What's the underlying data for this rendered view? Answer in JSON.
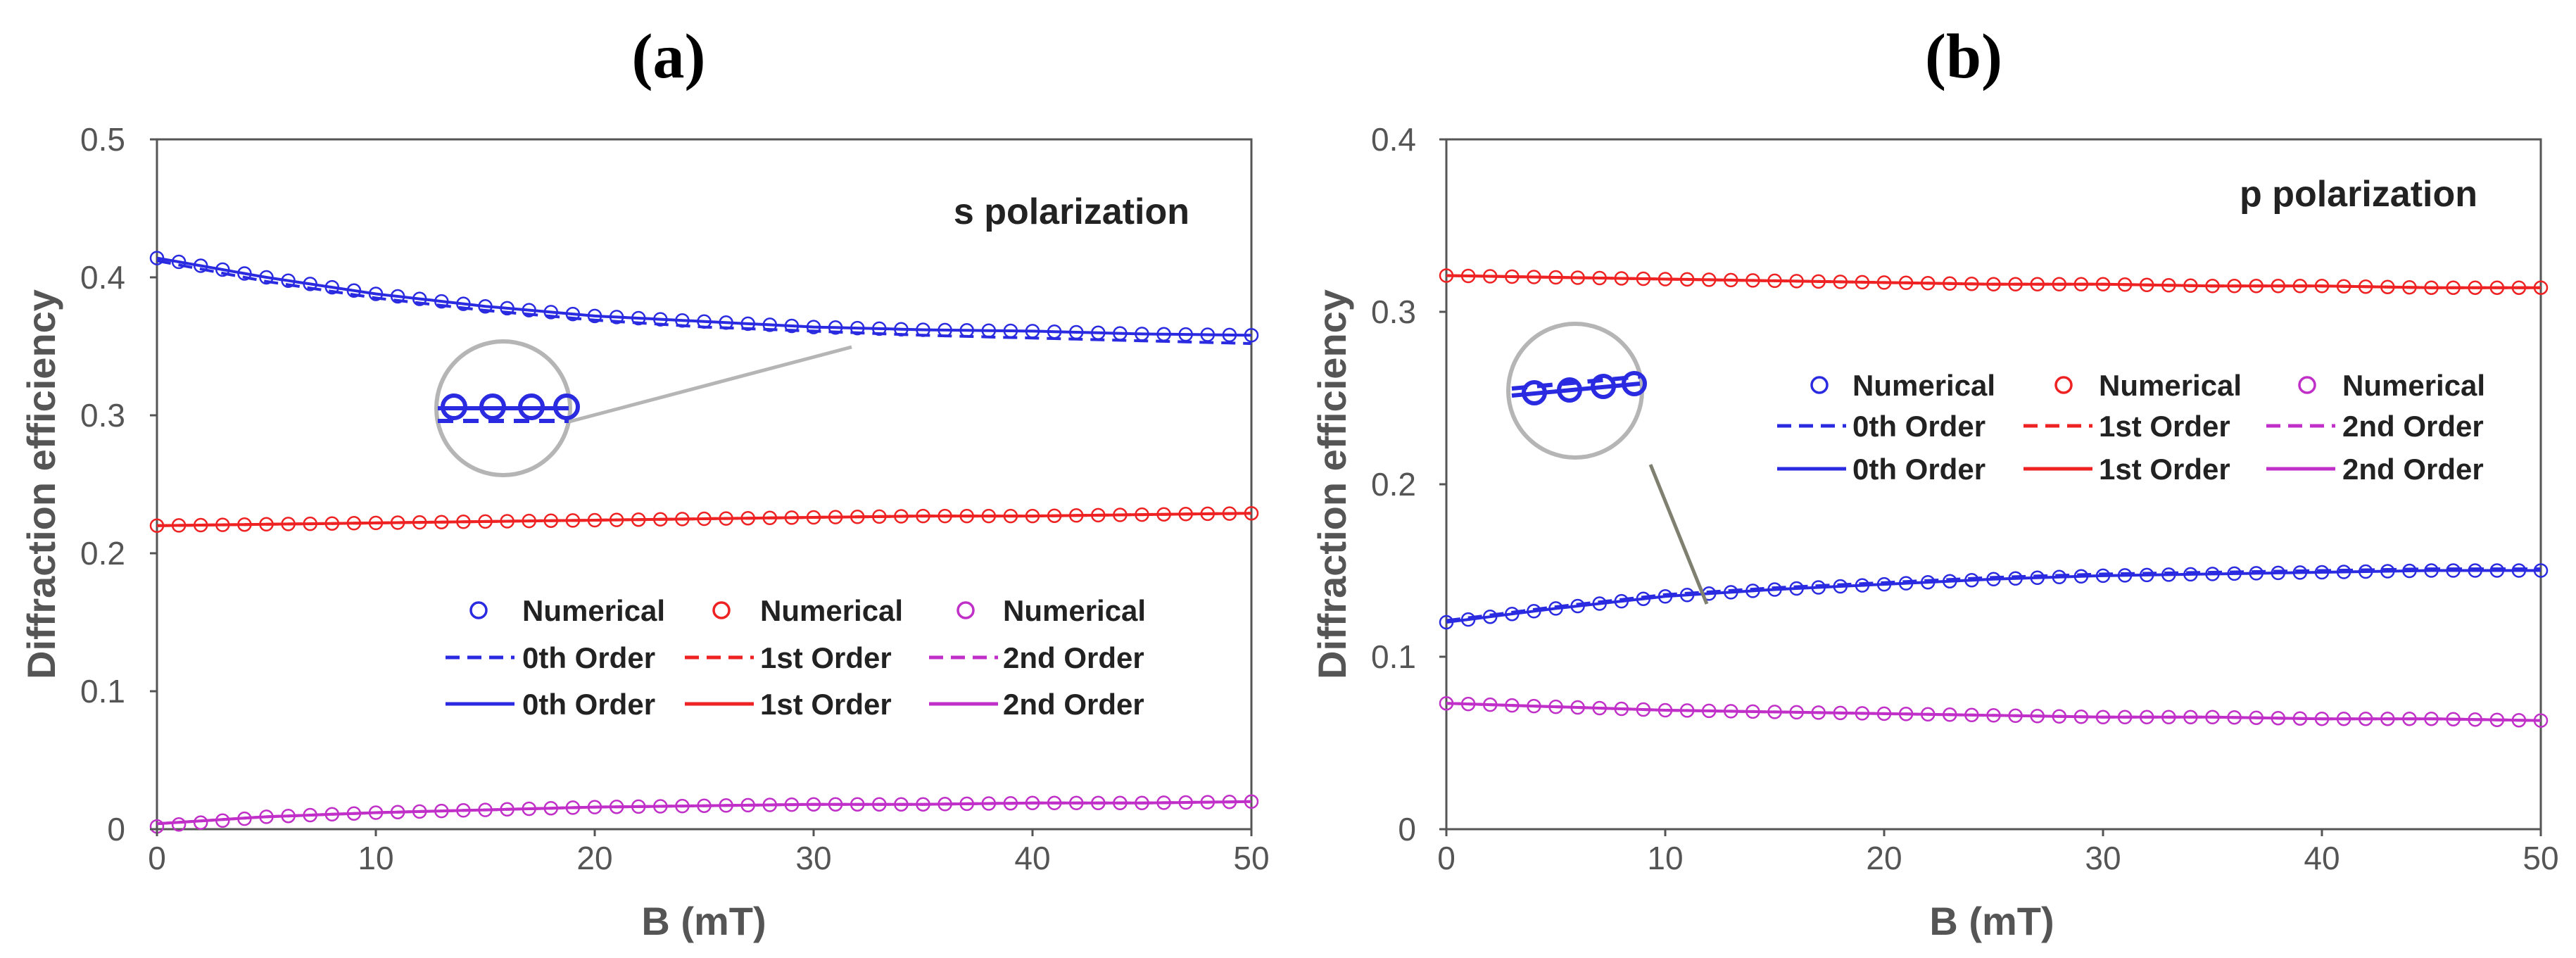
{
  "figure": {
    "panels": [
      {
        "label": "(a)",
        "annotation": "s polarization",
        "xlabel": "B (mT)",
        "ylabel": "Diffraction efficiency",
        "xlim": [
          0,
          50
        ],
        "ylim": [
          0,
          0.5
        ],
        "xticks": [
          "0",
          "10",
          "20",
          "30",
          "40",
          "50"
        ],
        "yticks": [
          "0",
          "0.1",
          "0.2",
          "0.3",
          "0.4",
          "0.5"
        ]
      },
      {
        "label": "(b)",
        "annotation": "p polarization",
        "xlabel": "B (mT)",
        "ylabel": "Diffraction efficiency",
        "xlim": [
          0,
          50
        ],
        "ylim": [
          0,
          0.4
        ],
        "xticks": [
          "0",
          "10",
          "20",
          "30",
          "40",
          "50"
        ],
        "yticks": [
          "0",
          "0.1",
          "0.2",
          "0.3",
          "0.4"
        ]
      }
    ],
    "legend": {
      "row1": [
        "Numerical",
        "Numerical",
        "Numerical"
      ],
      "row2": [
        "0th Order",
        "1st Order",
        "2nd Order"
      ],
      "row3": [
        "0th Order",
        "1st Order",
        "2nd Order"
      ]
    },
    "colors": {
      "order0": "#2a2ae0",
      "order1": "#ee2222",
      "order2": "#c030c8",
      "axis": "#555555",
      "inset": "#b5b5b5"
    }
  },
  "chart_data": [
    {
      "type": "line",
      "title": "(a) s polarization",
      "xlabel": "B (mT)",
      "ylabel": "Diffraction efficiency",
      "xlim": [
        0,
        50
      ],
      "ylim": [
        0,
        0.5
      ],
      "grid": false,
      "legend_position": "lower-center",
      "x": [
        0,
        5,
        10,
        15,
        20,
        25,
        30,
        35,
        40,
        45,
        50
      ],
      "series": [
        {
          "name": "0th Order (Numerical)",
          "style": "markers",
          "color": "#2a2ae0",
          "values": [
            0.414,
            0.4,
            0.388,
            0.379,
            0.372,
            0.368,
            0.364,
            0.362,
            0.361,
            0.359,
            0.358
          ]
        },
        {
          "name": "0th Order (dashed)",
          "style": "dashed",
          "color": "#2a2ae0",
          "values": [
            0.412,
            0.397,
            0.385,
            0.376,
            0.369,
            0.364,
            0.361,
            0.358,
            0.356,
            0.354,
            0.352
          ]
        },
        {
          "name": "0th Order (solid)",
          "style": "solid",
          "color": "#2a2ae0",
          "values": [
            0.414,
            0.4,
            0.388,
            0.379,
            0.372,
            0.368,
            0.364,
            0.362,
            0.361,
            0.359,
            0.358
          ]
        },
        {
          "name": "1st Order (Numerical)",
          "style": "markers",
          "color": "#ee2222",
          "values": [
            0.22,
            0.221,
            0.222,
            0.223,
            0.224,
            0.225,
            0.226,
            0.227,
            0.227,
            0.228,
            0.229
          ]
        },
        {
          "name": "1st Order (dashed)",
          "style": "dashed",
          "color": "#ee2222",
          "values": [
            0.22,
            0.221,
            0.222,
            0.223,
            0.224,
            0.225,
            0.226,
            0.227,
            0.227,
            0.228,
            0.229
          ]
        },
        {
          "name": "1st Order (solid)",
          "style": "solid",
          "color": "#ee2222",
          "values": [
            0.22,
            0.221,
            0.222,
            0.223,
            0.224,
            0.225,
            0.226,
            0.227,
            0.227,
            0.228,
            0.229
          ]
        },
        {
          "name": "2nd Order (Numerical)",
          "style": "markers",
          "color": "#c030c8",
          "values": [
            0.002,
            0.009,
            0.012,
            0.014,
            0.016,
            0.017,
            0.018,
            0.018,
            0.019,
            0.019,
            0.02
          ]
        },
        {
          "name": "2nd Order (dashed)",
          "style": "dashed",
          "color": "#c030c8",
          "values": [
            0.004,
            0.009,
            0.012,
            0.014,
            0.016,
            0.017,
            0.018,
            0.018,
            0.019,
            0.019,
            0.02
          ]
        },
        {
          "name": "2nd Order (solid)",
          "style": "solid",
          "color": "#c030c8",
          "values": [
            0.004,
            0.009,
            0.012,
            0.014,
            0.016,
            0.017,
            0.018,
            0.018,
            0.019,
            0.019,
            0.02
          ]
        }
      ]
    },
    {
      "type": "line",
      "title": "(b) p polarization",
      "xlabel": "B (mT)",
      "ylabel": "Diffraction efficiency",
      "xlim": [
        0,
        50
      ],
      "ylim": [
        0,
        0.4
      ],
      "grid": false,
      "legend_position": "center-right",
      "x": [
        0,
        5,
        10,
        15,
        20,
        25,
        30,
        35,
        40,
        45,
        50
      ],
      "series": [
        {
          "name": "0th Order (Numerical)",
          "style": "markers",
          "color": "#2a2ae0",
          "values": [
            0.12,
            0.128,
            0.135,
            0.139,
            0.142,
            0.145,
            0.147,
            0.148,
            0.149,
            0.15,
            0.15
          ]
        },
        {
          "name": "0th Order (dashed)",
          "style": "dashed",
          "color": "#2a2ae0",
          "values": [
            0.121,
            0.129,
            0.136,
            0.14,
            0.143,
            0.146,
            0.148,
            0.149,
            0.15,
            0.151,
            0.151
          ]
        },
        {
          "name": "0th Order (solid)",
          "style": "solid",
          "color": "#2a2ae0",
          "values": [
            0.12,
            0.128,
            0.135,
            0.139,
            0.142,
            0.145,
            0.147,
            0.148,
            0.149,
            0.15,
            0.15
          ]
        },
        {
          "name": "1st Order (Numerical)",
          "style": "markers",
          "color": "#ee2222",
          "values": [
            0.321,
            0.32,
            0.319,
            0.318,
            0.317,
            0.316,
            0.316,
            0.315,
            0.315,
            0.314,
            0.314
          ]
        },
        {
          "name": "1st Order (dashed)",
          "style": "dashed",
          "color": "#ee2222",
          "values": [
            0.321,
            0.32,
            0.319,
            0.318,
            0.317,
            0.316,
            0.316,
            0.315,
            0.315,
            0.314,
            0.314
          ]
        },
        {
          "name": "1st Order (solid)",
          "style": "solid",
          "color": "#ee2222",
          "values": [
            0.321,
            0.32,
            0.319,
            0.318,
            0.317,
            0.316,
            0.316,
            0.315,
            0.315,
            0.314,
            0.314
          ]
        },
        {
          "name": "2nd Order (Numerical)",
          "style": "markers",
          "color": "#c030c8",
          "values": [
            0.073,
            0.071,
            0.069,
            0.068,
            0.067,
            0.066,
            0.065,
            0.065,
            0.064,
            0.064,
            0.063
          ]
        },
        {
          "name": "2nd Order (dashed)",
          "style": "dashed",
          "color": "#c030c8",
          "values": [
            0.073,
            0.071,
            0.069,
            0.068,
            0.067,
            0.066,
            0.065,
            0.065,
            0.064,
            0.064,
            0.063
          ]
        },
        {
          "name": "2nd Order (solid)",
          "style": "solid",
          "color": "#c030c8",
          "values": [
            0.073,
            0.071,
            0.069,
            0.068,
            0.067,
            0.066,
            0.065,
            0.065,
            0.064,
            0.064,
            0.063
          ]
        }
      ]
    }
  ]
}
